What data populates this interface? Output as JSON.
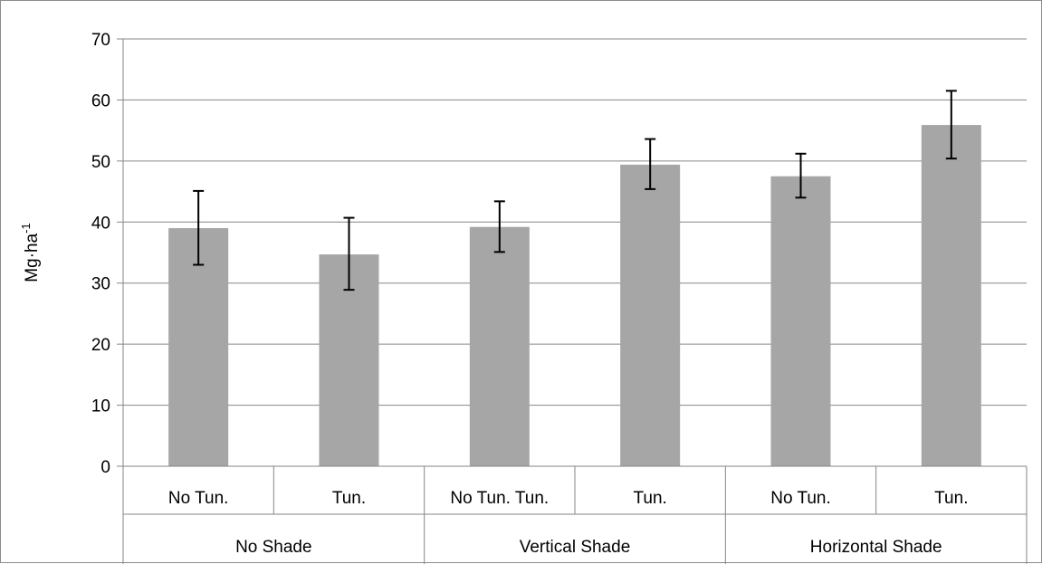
{
  "chart_data": {
    "type": "bar",
    "ylabel": "Mg·ha",
    "ylabel_superscript": "-1",
    "ylim": [
      0,
      70
    ],
    "yticks": [
      0,
      10,
      20,
      30,
      40,
      50,
      60,
      70
    ],
    "grid": true,
    "legend": "none",
    "bar_color": "#a6a6a6",
    "grid_color": "#868686",
    "error_bar_color": "#000000",
    "categories": [
      "No Tun.",
      "Tun.",
      "No Tun. Tun.",
      "Tun.",
      "No Tun.",
      "Tun."
    ],
    "groups": [
      {
        "label": "No Shade",
        "span": 2
      },
      {
        "label": "Vertical Shade",
        "span": 2
      },
      {
        "label": "Horizontal Shade",
        "span": 2
      }
    ],
    "values": [
      39.0,
      34.7,
      39.2,
      49.4,
      47.5,
      55.9
    ],
    "error_low": [
      33.0,
      28.9,
      35.1,
      45.4,
      44.0,
      50.4
    ],
    "error_high": [
      45.1,
      40.7,
      43.4,
      53.6,
      51.2,
      61.5
    ]
  }
}
